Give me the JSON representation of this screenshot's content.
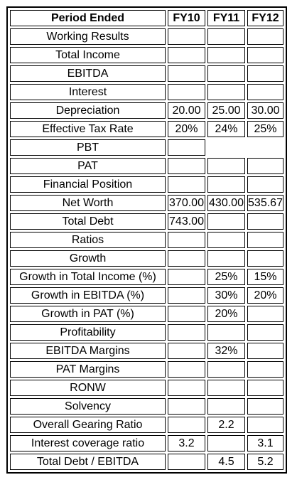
{
  "table": {
    "headers": [
      "Period Ended",
      "FY10",
      "FY11",
      "FY12"
    ],
    "rows": [
      {
        "label": "Working Results",
        "fy10": "",
        "fy11": "",
        "fy12": ""
      },
      {
        "label": "Total Income",
        "fy10": "",
        "fy11": "",
        "fy12": ""
      },
      {
        "label": "EBITDA",
        "fy10": "",
        "fy11": "",
        "fy12": ""
      },
      {
        "label": "Interest",
        "fy10": "",
        "fy11": "",
        "fy12": ""
      },
      {
        "label": "Depreciation",
        "fy10": "20.00",
        "fy11": "25.00",
        "fy12": "30.00"
      },
      {
        "label": "Effective Tax Rate",
        "fy10": "20%",
        "fy11": "24%",
        "fy12": "25%"
      },
      {
        "label": "PBT",
        "fy10": "",
        "fy11": "",
        "fy12": ""
      },
      {
        "label": "PAT",
        "fy10": "",
        "fy11": "",
        "fy12": ""
      },
      {
        "label": "Financial Position",
        "fy10": "",
        "fy11": "",
        "fy12": ""
      },
      {
        "label": "Net Worth",
        "fy10": "370.00",
        "fy11": "430.00",
        "fy12": "535.67"
      },
      {
        "label": "Total Debt",
        "fy10": "743.00",
        "fy11": "",
        "fy12": ""
      },
      {
        "label": "Ratios",
        "fy10": "",
        "fy11": "",
        "fy12": ""
      },
      {
        "label": "Growth",
        "fy10": "",
        "fy11": "",
        "fy12": ""
      },
      {
        "label": "Growth in Total Income (%)",
        "fy10": "",
        "fy11": "25%",
        "fy12": "15%"
      },
      {
        "label": "Growth in EBITDA (%)",
        "fy10": "",
        "fy11": "30%",
        "fy12": "20%"
      },
      {
        "label": "Growth in PAT (%)",
        "fy10": "",
        "fy11": "20%",
        "fy12": ""
      },
      {
        "label": "Profitability",
        "fy10": "",
        "fy11": "",
        "fy12": ""
      },
      {
        "label": "EBITDA Margins",
        "fy10": "",
        "fy11": "32%",
        "fy12": ""
      },
      {
        "label": "PAT Margins",
        "fy10": "",
        "fy11": "",
        "fy12": ""
      },
      {
        "label": "RONW",
        "fy10": "",
        "fy11": "",
        "fy12": ""
      },
      {
        "label": "Solvency",
        "fy10": "",
        "fy11": "",
        "fy12": ""
      },
      {
        "label": "Overall Gearing Ratio",
        "fy10": "",
        "fy11": "2.2",
        "fy12": ""
      },
      {
        "label": "Interest coverage ratio",
        "fy10": "3.2",
        "fy11": "",
        "fy12": "3.1"
      },
      {
        "label": "Total Debt / EBITDA",
        "fy10": "",
        "fy11": "4.5",
        "fy12": "5.2"
      }
    ]
  }
}
